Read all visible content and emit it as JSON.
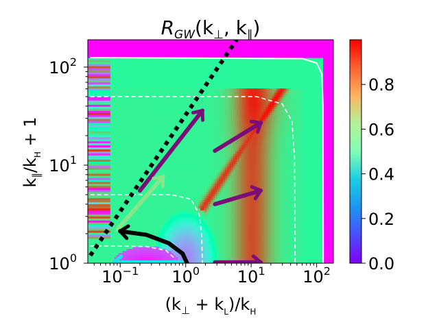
{
  "chart_data": {
    "type": "heatmap",
    "title": "R_GW(k⊥, k∥)",
    "title_parts": {
      "main": "R",
      "sub": "GW",
      "args": "(k",
      "perp": "⊥",
      "sep": ", k",
      "par": "∥",
      "close": ")"
    },
    "xlabel": "(k⊥ + kL)/kH",
    "xlabel_parts": {
      "open": "(k",
      "perp": "⊥",
      "plus": " + k",
      "L": "L",
      "mid": ")/k",
      "H": "H"
    },
    "ylabel": "k∥/kH + 1",
    "ylabel_parts": {
      "k": "k",
      "par": "∥",
      "slash": "/k",
      "H": "H",
      "tail": " + 1"
    },
    "x_scale": "log",
    "y_scale": "log",
    "xlim": [
      0.032,
      180
    ],
    "ylim": [
      1,
      190
    ],
    "x_ticks": [
      {
        "value": 0.1,
        "base": "10",
        "exp": "−1"
      },
      {
        "value": 1,
        "base": "10",
        "exp": "0"
      },
      {
        "value": 10,
        "base": "10",
        "exp": "1"
      },
      {
        "value": 100,
        "base": "10",
        "exp": "2"
      }
    ],
    "y_ticks": [
      {
        "value": 1,
        "base": "10",
        "exp": "0"
      },
      {
        "value": 10,
        "base": "10",
        "exp": "1"
      },
      {
        "value": 100,
        "base": "10",
        "exp": "2"
      }
    ],
    "colorbar": {
      "colormap": "rainbow",
      "range": [
        0,
        1
      ],
      "ticks": [
        "0.0",
        "0.2",
        "0.4",
        "0.6",
        "0.8"
      ],
      "tick_values": [
        0.0,
        0.2,
        0.4,
        0.6,
        0.8
      ]
    },
    "contours": [
      {
        "name": "solid-boundary-contour",
        "style": "solid",
        "color": "#ffffff",
        "points": [
          [
            0.035,
            125
          ],
          [
            60,
            122
          ],
          [
            100,
            110
          ],
          [
            120,
            85
          ],
          [
            125,
            40
          ],
          [
            126,
            1
          ]
        ]
      },
      {
        "name": "dashed-outer-contour",
        "style": "dashed",
        "color": "#ffffff",
        "points": [
          [
            0.035,
            50
          ],
          [
            12,
            50
          ],
          [
            30,
            42
          ],
          [
            42,
            28
          ],
          [
            46,
            12
          ],
          [
            47,
            1
          ]
        ]
      },
      {
        "name": "dashed-inner-contour",
        "style": "dashed",
        "color": "#ffffff",
        "points": [
          [
            0.035,
            5
          ],
          [
            0.6,
            5
          ],
          [
            1.2,
            4.5
          ],
          [
            1.6,
            3.2
          ],
          [
            1.75,
            2
          ],
          [
            1.8,
            1
          ]
        ]
      },
      {
        "name": "dashed-lower-contour",
        "style": "dashed",
        "color": "#ffffff",
        "points": [
          [
            0.035,
            1.5
          ],
          [
            0.25,
            1.48
          ],
          [
            0.5,
            1.35
          ],
          [
            0.65,
            1.15
          ],
          [
            0.7,
            1
          ]
        ]
      }
    ],
    "diagonal_line": {
      "style": "dotted",
      "color": "#000000",
      "points": [
        [
          0.035,
          1.2
        ],
        [
          6,
          190
        ]
      ]
    },
    "arrows": [
      {
        "name": "purple-diagonal-arrow",
        "color": "#7a0e78",
        "from": [
          0.2,
          5.5
        ],
        "to": [
          1.8,
          36
        ]
      },
      {
        "name": "purple-upper-arrow",
        "color": "#7a0e78",
        "from": [
          2.8,
          14
        ],
        "to": [
          14,
          27
        ]
      },
      {
        "name": "purple-middle-arrow",
        "color": "#7a0e78",
        "from": [
          2.8,
          4
        ],
        "to": [
          14,
          5.5
        ]
      },
      {
        "name": "purple-bottom-arrow",
        "color": "#7a0e78",
        "from": [
          2.8,
          1.02
        ],
        "to": [
          14,
          1.02
        ]
      },
      {
        "name": "green-diagonal-arrow",
        "color": "#86e68a",
        "from": [
          0.09,
          2.2
        ],
        "to": [
          0.45,
          7.6
        ]
      },
      {
        "name": "cyan-bottom-arrow",
        "color": "#18e6e6",
        "from": [
          0.9,
          1.02
        ],
        "to": [
          0.08,
          1.02
        ]
      },
      {
        "name": "black-curved-arrow",
        "color": "#000000",
        "curve": [
          [
            1.05,
            1
          ],
          [
            0.9,
            1.25
          ],
          [
            0.55,
            1.6
          ],
          [
            0.25,
            1.95
          ],
          [
            0.1,
            2.12
          ]
        ]
      }
    ],
    "annotations": []
  }
}
